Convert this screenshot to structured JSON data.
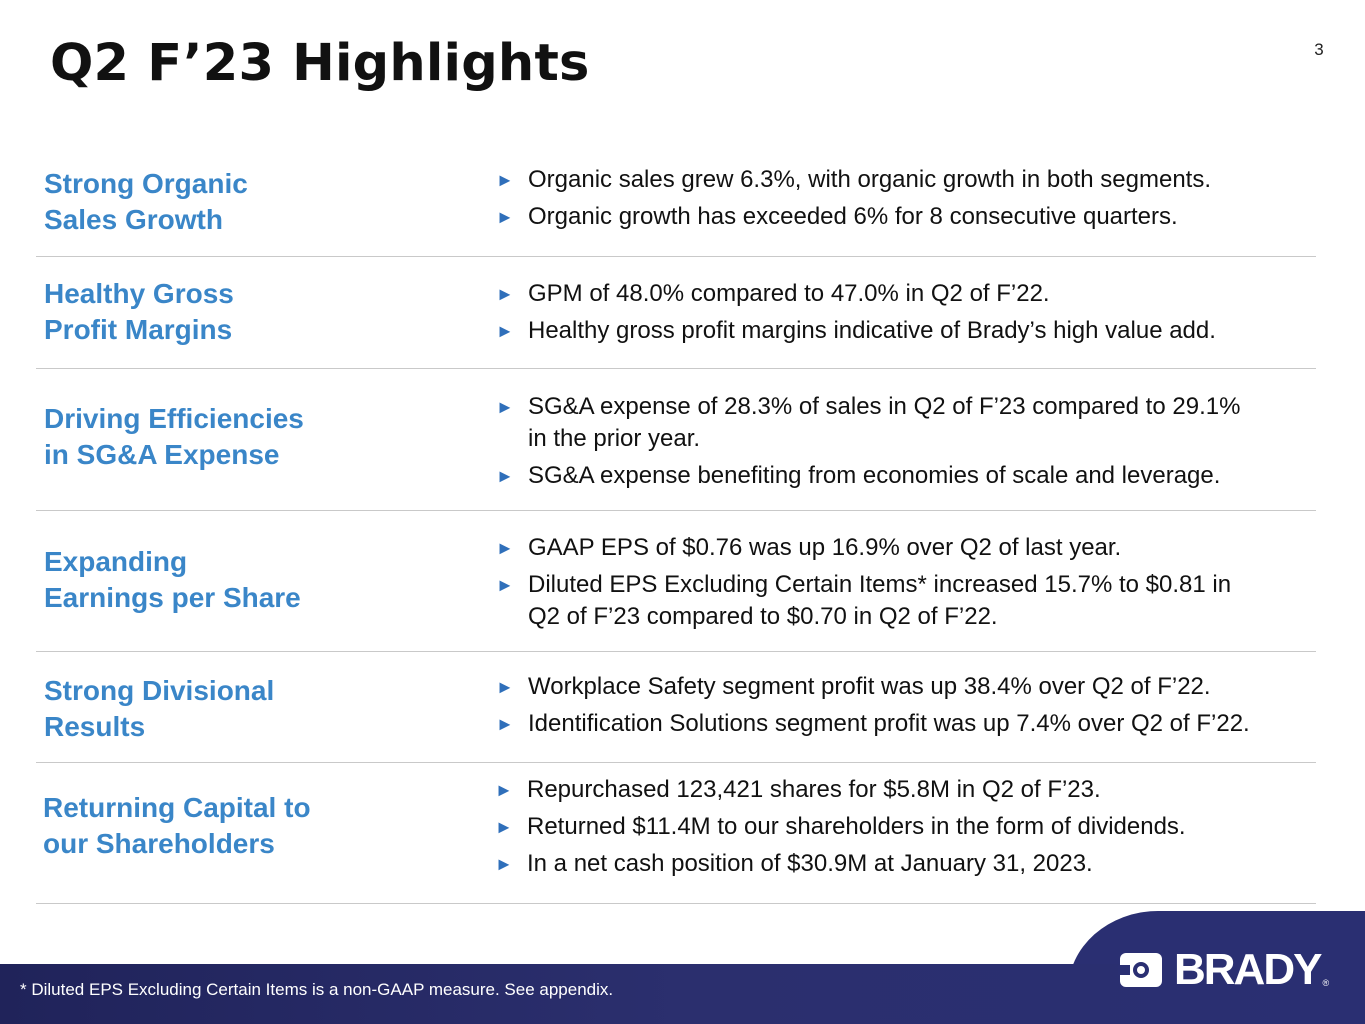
{
  "page_number": "3",
  "title": "Q2 F’23 Highlights",
  "sections": [
    {
      "heading": [
        "Strong Organic",
        "Sales Growth"
      ],
      "bullets": [
        [
          "Organic sales grew 6.3%, with organic growth in both segments."
        ],
        [
          "Organic growth has exceeded 6% for 8 consecutive quarters."
        ]
      ]
    },
    {
      "heading": [
        "Healthy Gross",
        "Profit Margins"
      ],
      "bullets": [
        [
          "GPM of 48.0% compared to 47.0% in Q2 of F’22."
        ],
        [
          "Healthy gross profit margins indicative of Brady’s high value add."
        ]
      ]
    },
    {
      "heading": [
        "Driving Efficiencies",
        "in SG&A Expense"
      ],
      "bullets": [
        [
          "SG&A expense of 28.3% of sales in Q2 of F’23 compared to 29.1%",
          "in the prior year."
        ],
        [
          "SG&A expense benefiting from economies of scale and leverage."
        ]
      ]
    },
    {
      "heading": [
        "Expanding",
        "Earnings per Share"
      ],
      "bullets": [
        [
          "GAAP EPS of $0.76 was up 16.9% over Q2 of last year."
        ],
        [
          "Diluted EPS Excluding Certain Items* increased 15.7% to $0.81 in",
          "Q2 of F’23 compared to $0.70 in Q2 of F’22."
        ]
      ]
    },
    {
      "heading": [
        "Strong Divisional",
        "Results"
      ],
      "bullets": [
        [
          "Workplace Safety segment profit was up 38.4% over Q2 of F’22."
        ],
        [
          "Identification Solutions segment profit was up 7.4% over Q2 of F’22."
        ]
      ]
    },
    {
      "heading": [
        "Returning Capital to",
        "our Shareholders"
      ],
      "bullets": [
        [
          "Repurchased 123,421 shares for $5.8M in Q2 of F’23."
        ],
        [
          "Returned $11.4M to our shareholders in the form of dividends."
        ],
        [
          "In a net cash position of $30.9M at January 31, 2023."
        ]
      ]
    }
  ],
  "bullet_glyph": "►",
  "footnote": "*   Diluted EPS Excluding Certain Items is a non-GAAP measure.  See appendix.",
  "logo": {
    "text": "BRADY",
    "registered": "®"
  },
  "colors": {
    "heading": "#3a86c8",
    "bullet_arrow": "#2f6fba",
    "footer": "#2a2f72"
  }
}
